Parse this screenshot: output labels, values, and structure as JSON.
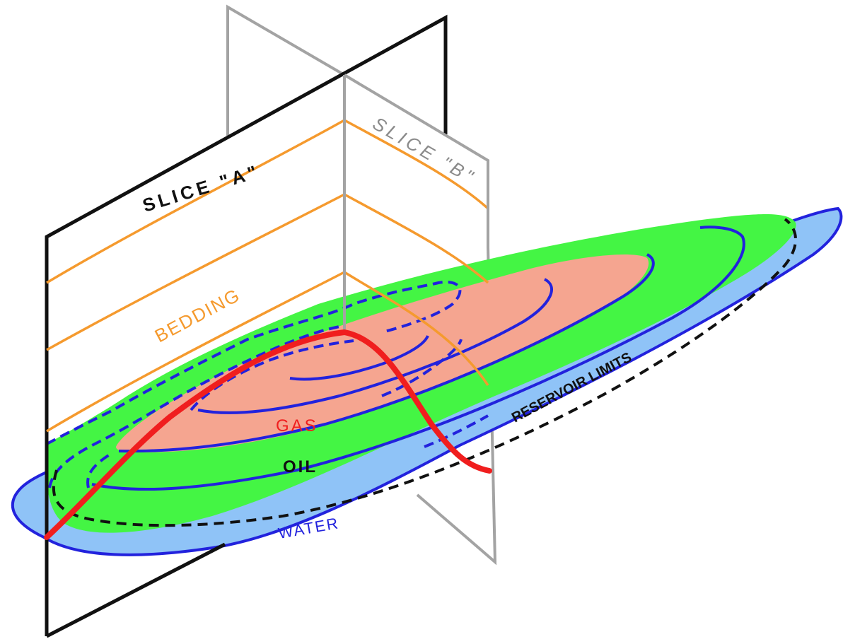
{
  "labels": {
    "slice_a": "SLICE \"A\"",
    "slice_b": "SLICE \"B\"",
    "bedding": "BEDDING",
    "gas": "GAS",
    "oil": "OIL",
    "water": "WATER",
    "reservoir_limits": "RESERVOIR LIMITS"
  },
  "colors": {
    "water": "#8fc3f7",
    "oil": "#44f544",
    "gas": "#f5a590",
    "contour": "#2222dd",
    "bedding": "#f59a2e",
    "horizon": "#f01e1e",
    "slice_a_frame": "#111111",
    "slice_b_frame": "#a3a3a3",
    "reservoir_limit": "#111111"
  }
}
